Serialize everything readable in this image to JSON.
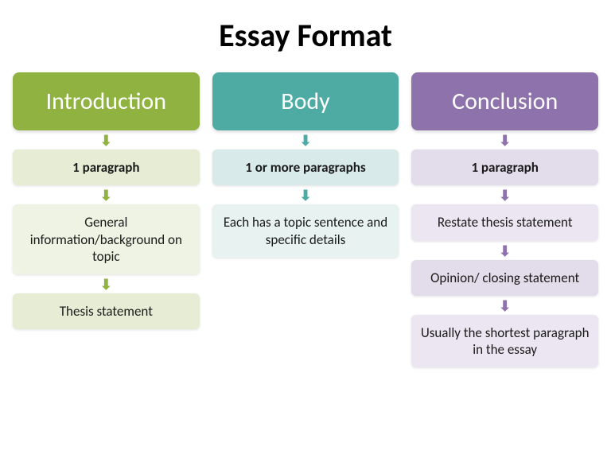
{
  "title": "Essay Format",
  "title_fontsize": 40,
  "title_color": "#000000",
  "background_color": "#ffffff",
  "columns": [
    {
      "header": "Introduction",
      "header_bg": "#8fb241",
      "header_fg": "#ffffff",
      "arrow_color": "#8fb241",
      "subs": [
        {
          "text": "1 paragraph",
          "bold": true,
          "bg": "#e6edd4"
        },
        {
          "text": "General information/background on topic",
          "bold": false,
          "bg": "#eef3e3"
        },
        {
          "text": "Thesis statement",
          "bold": false,
          "bg": "#e6edd4"
        }
      ]
    },
    {
      "header": "Body",
      "header_bg": "#4eaba3",
      "header_fg": "#ffffff",
      "arrow_color": "#4eaba3",
      "subs": [
        {
          "text": "1 or more paragraphs",
          "bold": true,
          "bg": "#d8eae9"
        },
        {
          "text": "Each has a topic sentence and specific details",
          "bold": false,
          "bg": "#e8f2f1"
        }
      ]
    },
    {
      "header": "Conclusion",
      "header_bg": "#8d72ab",
      "header_fg": "#ffffff",
      "arrow_color": "#8d72ab",
      "subs": [
        {
          "text": "1 paragraph",
          "bold": true,
          "bg": "#e3dceb"
        },
        {
          "text": "Restate thesis statement",
          "bold": false,
          "bg": "#ebe6f1"
        },
        {
          "text": "Opinion/ closing statement",
          "bold": false,
          "bg": "#e3dceb"
        },
        {
          "text": "Usually the shortest paragraph in the essay",
          "bold": false,
          "bg": "#ebe6f1"
        }
      ]
    }
  ]
}
